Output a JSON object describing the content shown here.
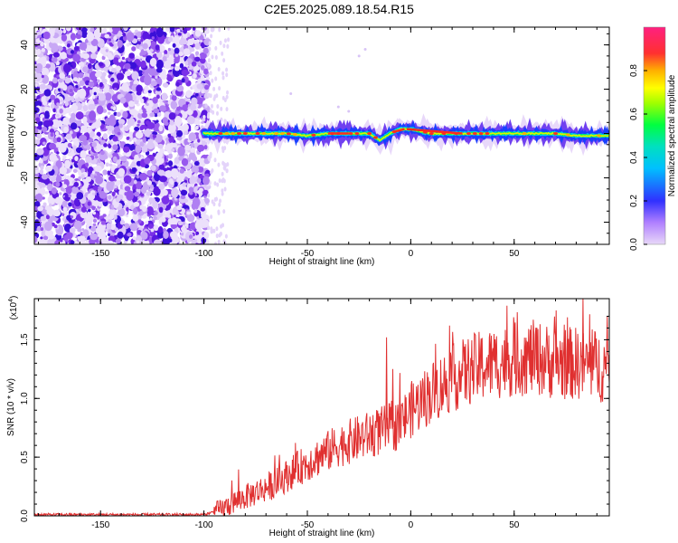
{
  "title": "C2E5.2025.089.18.54.R15",
  "chart_data": [
    {
      "type": "heatmap",
      "xlabel": "Height of straight line (km)",
      "ylabel": "Frequency (Hz)",
      "xlim": [
        -182,
        96
      ],
      "ylim": [
        -50,
        48
      ],
      "xticks": [
        -150,
        -100,
        -50,
        0,
        50
      ],
      "yticks": [
        -40,
        -20,
        0,
        20,
        40
      ],
      "colorbar": {
        "label": "Normalized spectral amplitude",
        "range": [
          0.0,
          1.0
        ],
        "ticks": [
          "0.0",
          "0.2",
          "0.4",
          "0.6",
          "0.8"
        ]
      },
      "ridge_track": {
        "description_values_x": [
          -100,
          -90,
          -80,
          -70,
          -60,
          -50,
          -40,
          -30,
          -20,
          -15,
          -10,
          -5,
          0,
          10,
          20,
          30,
          40,
          50,
          60,
          70,
          80,
          90,
          96
        ],
        "description_values_y": [
          0,
          0,
          0,
          0,
          0,
          -1,
          0,
          0,
          0,
          -3,
          0,
          2,
          2,
          0,
          0,
          0,
          0,
          0,
          0,
          0,
          -1,
          -1,
          -1
        ]
      }
    },
    {
      "type": "line",
      "xlabel": "Height of straight line (km)",
      "ylabel": "SNR (10 * v/v)",
      "multiplier": "(x10",
      "multiplier_exp": "4",
      "multiplier_close": ")",
      "xlim": [
        -182,
        96
      ],
      "ylim": [
        0,
        1.85
      ],
      "xticks": [
        -150,
        -100,
        -50,
        0,
        50
      ],
      "yticks": [
        "0.0",
        "0.5",
        "1.0",
        "1.5"
      ],
      "color": "#e03030",
      "trend": {
        "x": [
          -182,
          -100,
          -92,
          -85,
          -75,
          -65,
          -55,
          -45,
          -35,
          -25,
          -15,
          -10,
          -5,
          0,
          10,
          20,
          30,
          40,
          50,
          60,
          70,
          80,
          90,
          96
        ],
        "y": [
          0.01,
          0.01,
          0.05,
          0.12,
          0.2,
          0.28,
          0.4,
          0.5,
          0.6,
          0.66,
          0.72,
          0.75,
          0.78,
          0.9,
          1.05,
          1.17,
          1.25,
          1.3,
          1.33,
          1.35,
          1.3,
          1.3,
          1.28,
          1.25
        ]
      }
    }
  ]
}
